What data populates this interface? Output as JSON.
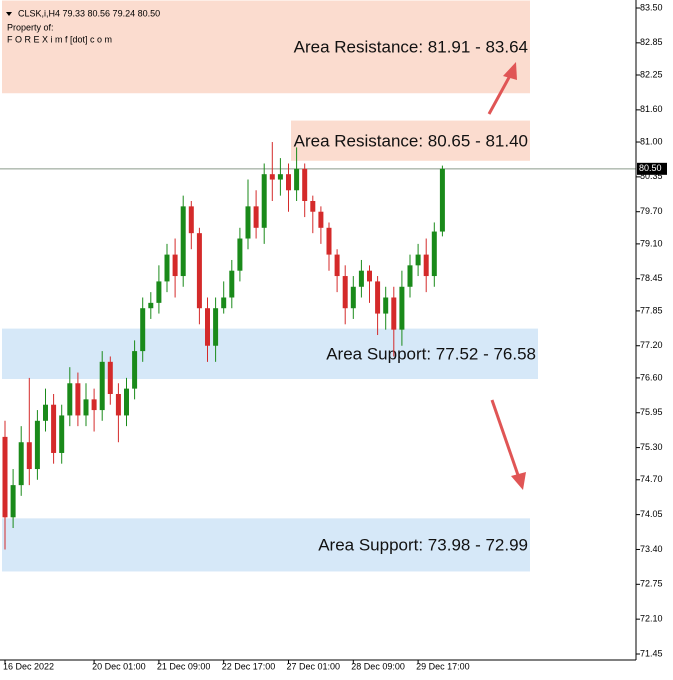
{
  "chart_data": {
    "type": "candlestick",
    "symbol_header": "CLSK,i,H4  79.33 80.56 79.24 80.50",
    "owner_line_1": "Property of:",
    "owner_line_2": "F O R E X i m f [dot] c o m",
    "categories": [
      "16 Dec 2022",
      null,
      null,
      null,
      null,
      null,
      null,
      null,
      null,
      null,
      null,
      "20 Dec 01:00",
      null,
      null,
      null,
      null,
      null,
      null,
      null,
      "21 Dec 09:00",
      null,
      null,
      null,
      null,
      null,
      null,
      null,
      "22 Dec 17:00",
      null,
      null,
      null,
      null,
      null,
      null,
      null,
      "27 Dec 01:00",
      null,
      null,
      null,
      null,
      null,
      null,
      null,
      "28 Dec 09:00",
      null,
      null,
      null,
      null,
      null,
      null,
      null,
      "29 Dec 17:00",
      null,
      null,
      null
    ],
    "open": [
      75.5,
      74.0,
      74.6,
      75.4,
      74.9,
      75.8,
      76.1,
      75.2,
      75.9,
      76.5,
      75.9,
      76.2,
      76.0,
      76.9,
      76.3,
      75.9,
      76.4,
      77.1,
      77.9,
      78.0,
      78.4,
      78.9,
      78.5,
      79.8,
      79.3,
      77.9,
      77.2,
      77.9,
      78.1,
      78.6,
      79.2,
      79.8,
      79.4,
      80.4,
      80.3,
      80.4,
      80.1,
      80.5,
      79.9,
      79.7,
      79.4,
      78.9,
      78.5,
      77.9,
      78.3,
      78.6,
      78.4,
      77.8,
      78.1,
      77.5,
      78.3,
      78.7,
      78.9,
      78.5,
      79.33
    ],
    "high": [
      75.8,
      74.9,
      75.7,
      76.6,
      76.0,
      76.4,
      76.3,
      76.1,
      76.8,
      76.7,
      76.5,
      76.4,
      77.1,
      77.0,
      76.5,
      76.6,
      77.3,
      78.1,
      78.2,
      78.7,
      79.1,
      79.2,
      80.0,
      79.9,
      79.4,
      78.1,
      78.1,
      78.4,
      78.8,
      79.4,
      80.3,
      80.1,
      80.6,
      81.0,
      80.7,
      80.6,
      80.9,
      80.6,
      80.0,
      79.8,
      79.5,
      79.0,
      78.7,
      78.5,
      78.8,
      78.7,
      78.5,
      78.3,
      78.3,
      78.6,
      78.9,
      79.1,
      79.2,
      79.5,
      80.56
    ],
    "low": [
      73.4,
      73.8,
      74.4,
      74.6,
      74.7,
      75.6,
      75.0,
      75.0,
      75.7,
      75.7,
      75.7,
      75.6,
      75.8,
      76.1,
      75.4,
      75.7,
      76.2,
      76.9,
      77.7,
      77.8,
      78.2,
      78.1,
      78.3,
      79.0,
      77.6,
      76.9,
      76.9,
      77.8,
      77.9,
      78.4,
      79.0,
      79.2,
      79.1,
      79.9,
      80.0,
      79.7,
      79.9,
      79.6,
      79.3,
      79.1,
      78.6,
      78.2,
      77.6,
      77.7,
      78.1,
      78.0,
      77.4,
      77.5,
      77.0,
      77.2,
      78.1,
      78.5,
      78.2,
      78.3,
      79.24
    ],
    "close": [
      74.0,
      74.6,
      75.4,
      74.9,
      75.8,
      76.1,
      75.2,
      75.9,
      76.5,
      75.9,
      76.2,
      76.0,
      76.9,
      76.3,
      75.9,
      76.4,
      77.1,
      77.9,
      78.0,
      78.4,
      78.9,
      78.5,
      79.8,
      79.3,
      77.9,
      77.2,
      77.9,
      78.1,
      78.6,
      79.2,
      79.8,
      79.4,
      80.4,
      80.3,
      80.4,
      80.1,
      80.5,
      79.9,
      79.7,
      79.4,
      78.9,
      78.5,
      77.9,
      78.3,
      78.6,
      78.4,
      77.8,
      78.1,
      77.5,
      78.3,
      78.7,
      78.9,
      78.5,
      79.33,
      80.5
    ],
    "up_color": "#1a8a1a",
    "down_color": "#d42a2a",
    "ylim": [
      71.45,
      83.5
    ],
    "yticks": [
      {
        "value": 83.5,
        "label": "83.50"
      },
      82.85,
      82.25,
      {
        "value": 81.6,
        "label": "81.60"
      },
      {
        "value": 81,
        "label": "81.00"
      },
      80.35,
      {
        "value": 79.7,
        "label": "79.70"
      },
      {
        "value": 79.1,
        "label": "79.10"
      },
      78.45,
      77.85,
      {
        "value": 77.2,
        "label": "77.20"
      },
      {
        "value": 76.6,
        "label": "76.60"
      },
      75.95,
      {
        "value": 75.3,
        "label": "75.30"
      },
      {
        "value": 74.7,
        "label": "74.70"
      },
      74.05,
      {
        "value": 73.4,
        "label": "73.40"
      },
      72.75,
      {
        "value": 72.1,
        "label": "72.10"
      },
      71.45
    ],
    "current_price": {
      "value": 80.5,
      "label": "80.50"
    },
    "zones": [
      {
        "label": "Area Resistance: 81.91 - 83.64",
        "from": 81.91,
        "to": 83.64,
        "color": "#fbdccf"
      },
      {
        "label": "Area Resistance: 80.65 - 81.40",
        "from": 80.65,
        "to": 81.4,
        "color": "#fbdccf"
      },
      {
        "label": "Area Support: 77.52 - 76.58",
        "from": 76.58,
        "to": 77.52,
        "color": "#d6e8f8"
      },
      {
        "label": "Area Support: 73.98 - 72.99",
        "from": 72.99,
        "to": 73.98,
        "color": "#d6e8f8"
      }
    ]
  }
}
